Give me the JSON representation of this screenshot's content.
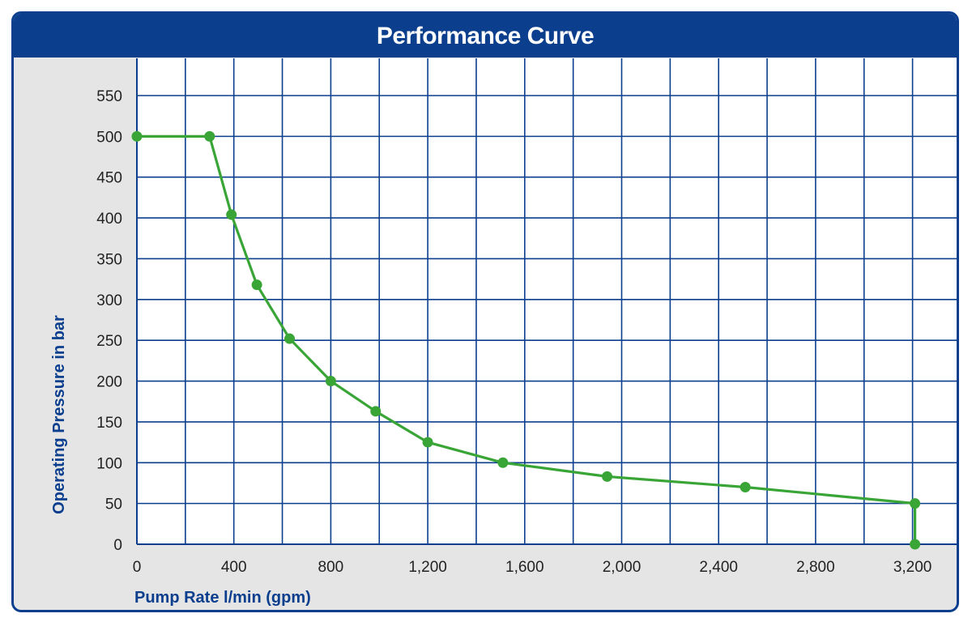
{
  "chart_data": {
    "type": "line",
    "title": "Performance Curve",
    "xlabel": "Pump Rate l/min (gpm)",
    "ylabel": "Operating Pressure in bar",
    "xlim": [
      0,
      3200
    ],
    "ylim": [
      0,
      550
    ],
    "x_ticks": [
      0,
      400,
      800,
      1200,
      1600,
      2000,
      2400,
      2800,
      3200
    ],
    "x_tick_labels": [
      "0",
      "400",
      "800",
      "1,200",
      "1,600",
      "2,000",
      "2,400",
      "2,800",
      "3,200"
    ],
    "x_grid_step": 200,
    "y_ticks": [
      0,
      50,
      100,
      150,
      200,
      250,
      300,
      350,
      400,
      450,
      500,
      550
    ],
    "y_tick_labels": [
      "0",
      "50",
      "100",
      "150",
      "200",
      "250",
      "300",
      "350",
      "400",
      "450",
      "500",
      "550"
    ],
    "grid": true,
    "colors": {
      "series": "#3aa537",
      "grid": "#0b3f8e",
      "plot_bg": "#ffffff",
      "frame": "#0b3f8e",
      "panel_bg": "#e5e5e5"
    },
    "series": [
      {
        "x": [
          0,
          300,
          390,
          495,
          630,
          800,
          985,
          1200,
          1510,
          1940,
          2510,
          3210,
          3210
        ],
        "y": [
          500,
          500,
          404,
          318,
          252,
          200,
          163,
          125,
          100,
          83,
          70,
          50,
          0
        ]
      }
    ]
  }
}
